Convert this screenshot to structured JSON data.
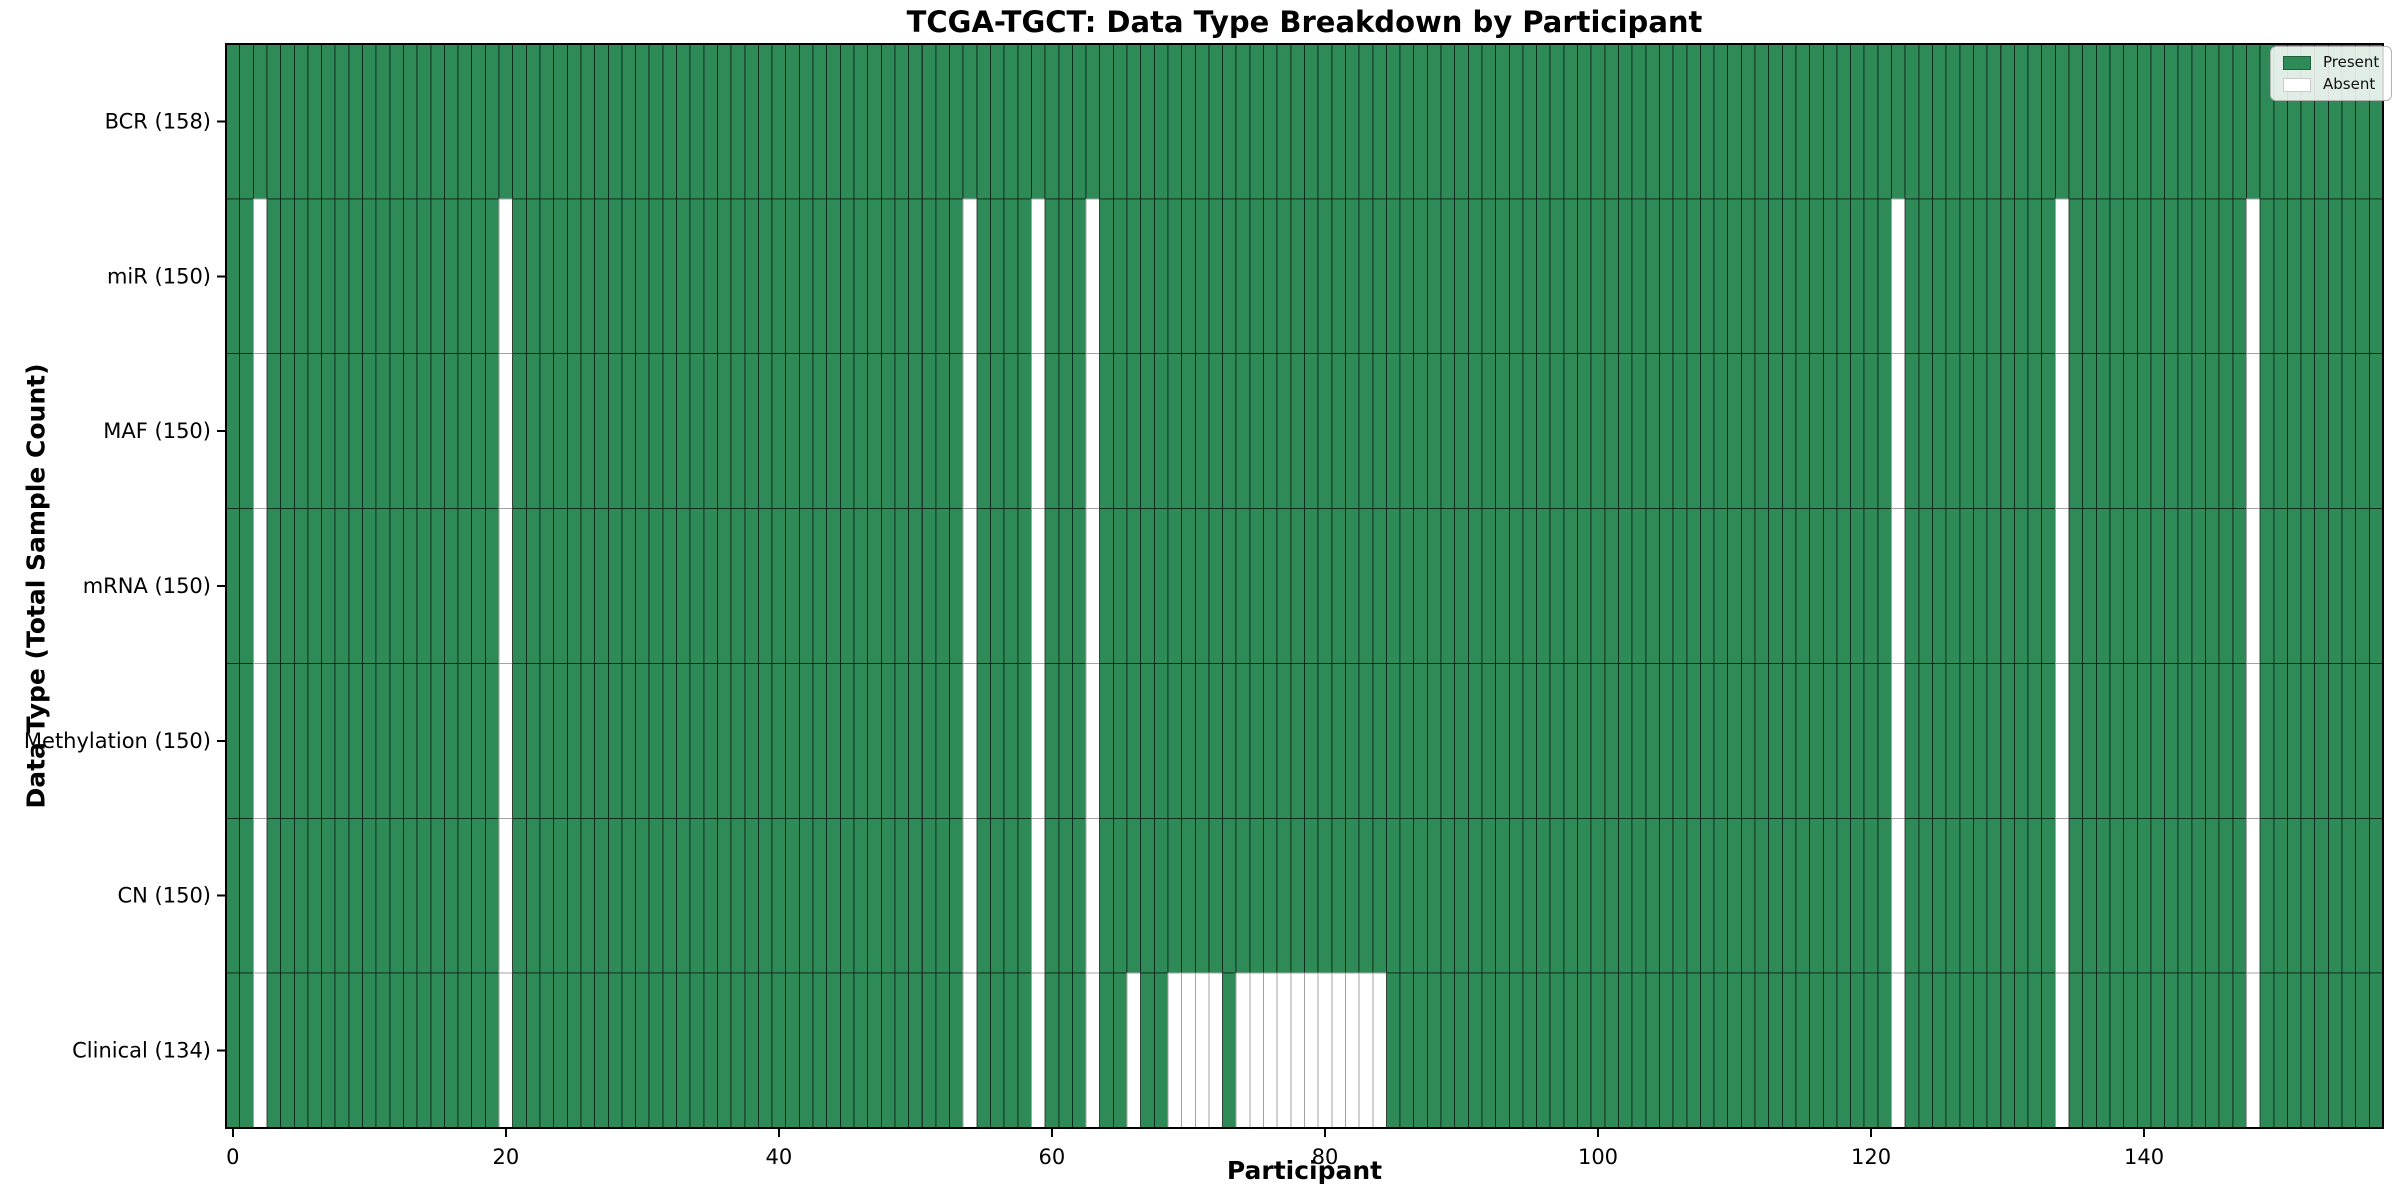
{
  "chart_data": {
    "type": "heatmap",
    "title": "TCGA-TGCT: Data Type Breakdown by Participant",
    "xlabel": "Participant",
    "ylabel": "Data Type (Total Sample Count)",
    "n_participants": 158,
    "x_range": [
      -0.5,
      157.5
    ],
    "x_ticks": [
      0,
      20,
      40,
      60,
      80,
      100,
      120,
      140
    ],
    "legend_position": "upper right",
    "rows": [
      {
        "label": "BCR (158)",
        "present_count": 158,
        "absent_participants": []
      },
      {
        "label": "miR (150)",
        "present_count": 150,
        "absent_participants": [
          2,
          20,
          54,
          59,
          63,
          122,
          134,
          148
        ]
      },
      {
        "label": "MAF (150)",
        "present_count": 150,
        "absent_participants": [
          2,
          20,
          54,
          59,
          63,
          122,
          134,
          148
        ]
      },
      {
        "label": "mRNA (150)",
        "present_count": 150,
        "absent_participants": [
          2,
          20,
          54,
          59,
          63,
          122,
          134,
          148
        ]
      },
      {
        "label": "Methylation (150)",
        "present_count": 150,
        "absent_participants": [
          2,
          20,
          54,
          59,
          63,
          122,
          134,
          148
        ]
      },
      {
        "label": "CN (150)",
        "present_count": 150,
        "absent_participants": [
          2,
          20,
          54,
          59,
          63,
          122,
          134,
          148
        ]
      },
      {
        "label": "Clinical (134)",
        "present_count": 134,
        "absent_participants": [
          2,
          20,
          54,
          59,
          63,
          66,
          69,
          70,
          71,
          72,
          74,
          75,
          76,
          77,
          78,
          79,
          80,
          81,
          82,
          83,
          84,
          122,
          134,
          148
        ]
      }
    ],
    "legend": [
      {
        "label": "Present",
        "color": "#2e8b57"
      },
      {
        "label": "Absent",
        "color": "#ffffff"
      }
    ],
    "colors": {
      "present": "#2e8b57",
      "absent": "#ffffff",
      "edge_on_present": "rgba(0,0,0,0.55)",
      "edge_on_absent": "#a3a3a3",
      "spine": "#000000",
      "tick_label": "#000000"
    }
  }
}
